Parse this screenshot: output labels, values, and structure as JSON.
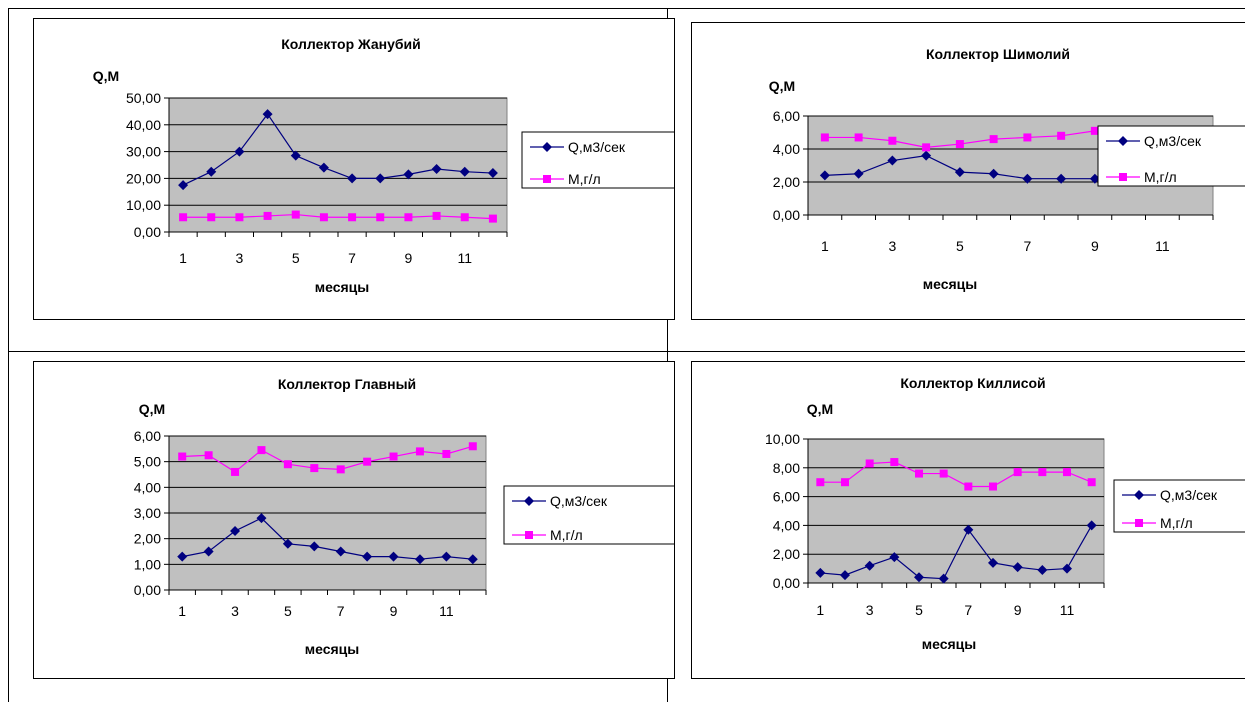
{
  "colors": {
    "plot_bg": "#c0c0c0",
    "q_line": "#000080",
    "m_line": "#ff00ff",
    "grid": "#000000"
  },
  "chart_data": [
    {
      "type": "line",
      "title": "Коллектор Жанубий",
      "ylabel": "Q,M",
      "xlabel": "месяцы",
      "x": [
        1,
        2,
        3,
        4,
        5,
        6,
        7,
        8,
        9,
        10,
        11,
        12
      ],
      "x_tick_labels": [
        "1",
        "3",
        "5",
        "7",
        "9",
        "11"
      ],
      "y_tick_labels": [
        "0,00",
        "10,00",
        "20,00",
        "30,00",
        "40,00",
        "50,00"
      ],
      "ylim": [
        0,
        50
      ],
      "grid": true,
      "legend_position": "right",
      "series": [
        {
          "name": "Q,м3/сек",
          "marker": "diamond",
          "values": [
            17.5,
            22.5,
            30,
            44,
            28.5,
            24,
            20,
            20,
            21.5,
            23.5,
            22.5,
            22
          ]
        },
        {
          "name": "М,г/л",
          "marker": "square",
          "values": [
            5.5,
            5.5,
            5.5,
            6,
            6.5,
            5.5,
            5.5,
            5.5,
            5.5,
            6,
            5.5,
            5
          ]
        }
      ]
    },
    {
      "type": "line",
      "title": "Коллектор Шимолий",
      "ylabel": "Q,M",
      "xlabel": "месяцы",
      "x": [
        1,
        2,
        3,
        4,
        5,
        6,
        7,
        8,
        9,
        10,
        11,
        12
      ],
      "x_tick_labels": [
        "1",
        "3",
        "5",
        "7",
        "9",
        "11"
      ],
      "y_tick_labels": [
        "0,00",
        "2,00",
        "4,00",
        "6,00"
      ],
      "ylim": [
        0,
        6
      ],
      "grid": true,
      "legend_position": "right",
      "series": [
        {
          "name": "Q,м3/сек",
          "marker": "diamond",
          "values": [
            2.4,
            2.5,
            3.3,
            3.6,
            2.6,
            2.5,
            2.2,
            2.2,
            2.2,
            2.2,
            2.1,
            2.2
          ]
        },
        {
          "name": "М,г/л",
          "marker": "square",
          "values": [
            4.7,
            4.7,
            4.5,
            4.1,
            4.3,
            4.6,
            4.7,
            4.8,
            5.1,
            5.0,
            4.8,
            5.1
          ]
        }
      ]
    },
    {
      "type": "line",
      "title": "Коллектор Главный",
      "ylabel": "Q,M",
      "xlabel": "месяцы",
      "x": [
        1,
        2,
        3,
        4,
        5,
        6,
        7,
        8,
        9,
        10,
        11,
        12
      ],
      "x_tick_labels": [
        "1",
        "3",
        "5",
        "7",
        "9",
        "11"
      ],
      "y_tick_labels": [
        "0,00",
        "1,00",
        "2,00",
        "3,00",
        "4,00",
        "5,00",
        "6,00"
      ],
      "ylim": [
        0,
        6
      ],
      "grid": true,
      "legend_position": "right",
      "series": [
        {
          "name": "Q,м3/сек",
          "marker": "diamond",
          "values": [
            1.3,
            1.5,
            2.3,
            2.8,
            1.8,
            1.7,
            1.5,
            1.3,
            1.3,
            1.2,
            1.3,
            1.2
          ]
        },
        {
          "name": "М,г/л",
          "marker": "square",
          "values": [
            5.2,
            5.25,
            4.6,
            5.45,
            4.9,
            4.75,
            4.7,
            5.0,
            5.2,
            5.4,
            5.3,
            5.6
          ]
        }
      ]
    },
    {
      "type": "line",
      "title": "Коллектор Киллисой",
      "ylabel": "Q,M",
      "xlabel": "месяцы",
      "x": [
        1,
        2,
        3,
        4,
        5,
        6,
        7,
        8,
        9,
        10,
        11,
        12
      ],
      "x_tick_labels": [
        "1",
        "3",
        "5",
        "7",
        "9",
        "11"
      ],
      "y_tick_labels": [
        "0,00",
        "2,00",
        "4,00",
        "6,00",
        "8,00",
        "10,00"
      ],
      "ylim": [
        0,
        10
      ],
      "grid": true,
      "legend_position": "right",
      "series": [
        {
          "name": "Q,м3/сек",
          "marker": "diamond",
          "values": [
            0.7,
            0.55,
            1.2,
            1.8,
            0.4,
            0.3,
            3.7,
            1.4,
            1.1,
            0.9,
            1.0,
            4.0
          ]
        },
        {
          "name": "М,г/л",
          "marker": "square",
          "values": [
            7.0,
            7.0,
            8.3,
            8.4,
            7.6,
            7.6,
            6.7,
            6.7,
            7.7,
            7.7,
            7.7,
            7.0
          ]
        }
      ]
    }
  ]
}
